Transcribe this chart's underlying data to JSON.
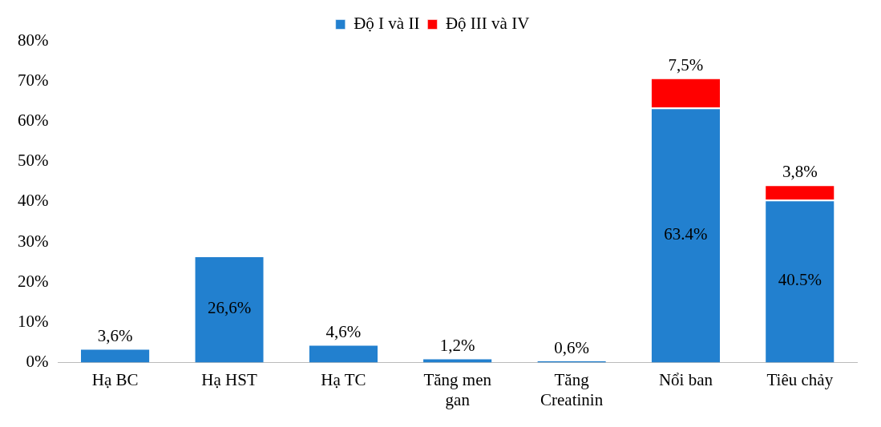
{
  "chart_data": {
    "type": "bar",
    "stacked": true,
    "categories": [
      "Hạ BC",
      "Hạ HST",
      "Hạ TC",
      "Tăng men gan",
      "Tăng Creatinin",
      "Nổi ban",
      "Tiêu chảy"
    ],
    "series": [
      {
        "name": "Độ I và II",
        "color": "#2280cf",
        "values": [
          3.6,
          26.6,
          4.6,
          1.2,
          0.6,
          63.4,
          40.5
        ],
        "value_labels": [
          "3,6%",
          "26,6%",
          "4,6%",
          "1,2%",
          "0,6%",
          "63.4%",
          "40.5%"
        ]
      },
      {
        "name": "Độ III và IV",
        "color": "#ff0000",
        "values": [
          null,
          null,
          null,
          null,
          null,
          7.5,
          3.8
        ],
        "value_labels": [
          null,
          null,
          null,
          null,
          null,
          "7,5%",
          "3,8%"
        ]
      }
    ],
    "ylim": [
      0,
      80
    ],
    "yticks": [
      {
        "value": 0,
        "label": "0%"
      },
      {
        "value": 10,
        "label": "10%"
      },
      {
        "value": 20,
        "label": "20%"
      },
      {
        "value": 30,
        "label": "30%"
      },
      {
        "value": 40,
        "label": "40%"
      },
      {
        "value": 50,
        "label": "50%"
      },
      {
        "value": 60,
        "label": "60%"
      },
      {
        "value": 70,
        "label": "70%"
      },
      {
        "value": 80,
        "label": "80%"
      }
    ],
    "grid": false,
    "legend": "top"
  }
}
